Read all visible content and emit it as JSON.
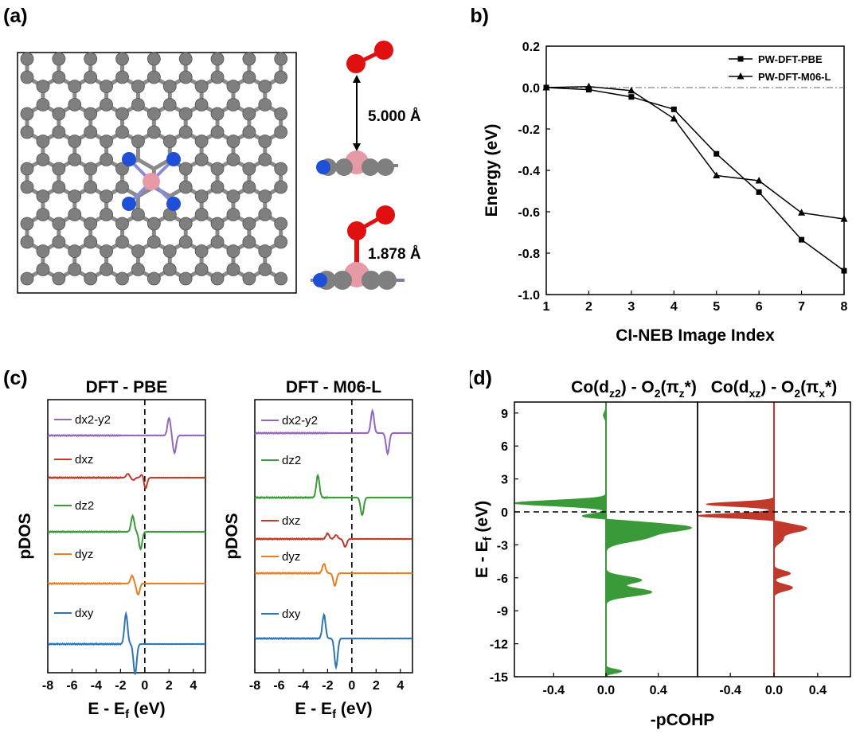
{
  "panels": {
    "a": "(a)",
    "b": "(b)",
    "c": "(c)",
    "d": "(d)"
  },
  "panel_a": {
    "distance_far": "5.000 Å",
    "distance_near": "1.878 Å"
  },
  "colors": {
    "carbon": "#7f7f7f",
    "nitrogen": "#1f4fd8",
    "cobalt": "#e69aa6",
    "oxygen": "#e01010",
    "pbe": "#000000",
    "m06l": "#000000",
    "dx2y2": "#9467bd",
    "dxz": "#c0392b",
    "dz2": "#3a9a3a",
    "dyz": "#e67e22",
    "dxy": "#2e75b6",
    "cohp1": "#3a9a3a",
    "cohp2": "#c0392b"
  },
  "chart_data": [
    {
      "panel": "b",
      "type": "line",
      "xlabel": "CI-NEB Image Index",
      "ylabel": "Energy (eV)",
      "xlim": [
        1,
        8
      ],
      "ylim": [
        -1.0,
        0.2
      ],
      "xticks": [
        "1",
        "2",
        "3",
        "4",
        "5",
        "6",
        "7",
        "8"
      ],
      "yticks": [
        "0.2",
        "0.0",
        "-0.2",
        "-0.4",
        "-0.6",
        "-0.8",
        "-1.0"
      ],
      "legend_position": "top-right",
      "reference_line": 0.0,
      "series": [
        {
          "name": "PW-DFT-PBE",
          "marker": "square",
          "x": [
            1,
            2,
            3,
            4,
            5,
            6,
            7,
            8
          ],
          "values": [
            0.0,
            -0.01,
            -0.045,
            -0.105,
            -0.32,
            -0.505,
            -0.735,
            -0.885
          ]
        },
        {
          "name": "PW-DFT-M06-L",
          "marker": "triangle",
          "x": [
            1,
            2,
            3,
            4,
            5,
            6,
            7,
            8
          ],
          "values": [
            0.0,
            0.005,
            -0.015,
            -0.15,
            -0.425,
            -0.45,
            -0.605,
            -0.635
          ]
        }
      ]
    },
    {
      "panel": "c-left",
      "type": "line",
      "title": "DFT - PBE",
      "xlabel": "E - E",
      "xlabel_sub": "f",
      "xlabel_unit": " (eV)",
      "ylabel": "pDOS",
      "xlim": [
        -8,
        5
      ],
      "xticks": [
        "-8",
        "-6",
        "-4",
        "-2",
        "0",
        "2",
        "4"
      ],
      "fermi_level": 0,
      "series": [
        {
          "name": "dx2-y2",
          "color": "dx2y2",
          "peaks": [
            {
              "e": 2.0,
              "amp": 22
            },
            {
              "e": 2.45,
              "amp": -22
            }
          ]
        },
        {
          "name": "dxz",
          "color": "dxz",
          "peaks": [
            {
              "e": -1.4,
              "amp": 5
            },
            {
              "e": -0.95,
              "amp": -3
            },
            {
              "e": -0.2,
              "amp": 5
            },
            {
              "e": 0.05,
              "amp": -14
            }
          ]
        },
        {
          "name": "dz2",
          "color": "dz2",
          "peaks": [
            {
              "e": -1.0,
              "amp": 20
            },
            {
              "e": -0.35,
              "amp": -22
            }
          ]
        },
        {
          "name": "dyz",
          "color": "dyz",
          "peaks": [
            {
              "e": -1.05,
              "amp": 10
            },
            {
              "e": -0.55,
              "amp": -14
            }
          ]
        },
        {
          "name": "dxy",
          "color": "dxy",
          "peaks": [
            {
              "e": -1.55,
              "amp": 38
            },
            {
              "e": -0.8,
              "amp": -38
            }
          ]
        }
      ]
    },
    {
      "panel": "c-right",
      "type": "line",
      "title": "DFT - M06-L",
      "xlabel": "E - E",
      "xlabel_sub": "f",
      "xlabel_unit": " (eV)",
      "ylabel": "pDOS",
      "xlim": [
        -8,
        5
      ],
      "xticks": [
        "-8",
        "-6",
        "-4",
        "-2",
        "0",
        "2",
        "4"
      ],
      "fermi_level": 0,
      "series": [
        {
          "name": "dx2-y2",
          "color": "dx2y2",
          "peaks": [
            {
              "e": 1.7,
              "amp": 28
            },
            {
              "e": 2.95,
              "amp": -26
            }
          ]
        },
        {
          "name": "dz2",
          "color": "dz2",
          "peaks": [
            {
              "e": -2.8,
              "amp": 28
            },
            {
              "e": 0.85,
              "amp": -22
            }
          ]
        },
        {
          "name": "dxz",
          "color": "dxz",
          "peaks": [
            {
              "e": -2.0,
              "amp": 7
            },
            {
              "e": -1.3,
              "amp": 5
            },
            {
              "e": -0.55,
              "amp": -10
            }
          ]
        },
        {
          "name": "dyz",
          "color": "dyz",
          "peaks": [
            {
              "e": -2.3,
              "amp": 12
            },
            {
              "e": -1.4,
              "amp": -16
            }
          ]
        },
        {
          "name": "dxy",
          "color": "dxy",
          "peaks": [
            {
              "e": -2.3,
              "amp": 30
            },
            {
              "e": -1.3,
              "amp": -36
            }
          ]
        }
      ]
    },
    {
      "panel": "d",
      "type": "area",
      "ylabel": "E - E",
      "ylabel_sub": "f",
      "ylabel_unit": " (eV)",
      "xlabel": "-pCOHP",
      "ylim": [
        -15,
        10
      ],
      "yticks": [
        "9",
        "6",
        "3",
        "0",
        "-3",
        "-6",
        "-9",
        "-12",
        "-15"
      ],
      "fermi_level": 0,
      "subplots": [
        {
          "title_parts": [
            "Co(d",
            "z2",
            ") - O",
            "2",
            "(π",
            "z",
            "*)"
          ],
          "xlim": [
            -0.7,
            0.7
          ],
          "xticks": [
            "-0.4",
            "0.0",
            "0.4"
          ],
          "color": "cohp1",
          "peaks": [
            {
              "e": 0.8,
              "amp": -0.7,
              "w": 0.35
            },
            {
              "e": -0.4,
              "amp": -0.2,
              "w": 0.3
            },
            {
              "e": -1.4,
              "amp": 0.62,
              "w": 0.55
            },
            {
              "e": -2.3,
              "amp": 0.3,
              "w": 0.6
            },
            {
              "e": -6.2,
              "amp": 0.27,
              "w": 0.45
            },
            {
              "e": -7.3,
              "amp": 0.35,
              "w": 0.5
            },
            {
              "e": -14.5,
              "amp": 0.12,
              "w": 0.25
            },
            {
              "e": 8.8,
              "amp": -0.02,
              "w": 0.4
            }
          ]
        },
        {
          "title_parts": [
            "Co(d",
            "xz",
            ") - O",
            "2",
            "(π",
            "x",
            "*)"
          ],
          "xlim": [
            -0.7,
            0.7
          ],
          "xticks": [
            "-0.4",
            "0.0",
            "0.4"
          ],
          "color": "cohp2",
          "peaks": [
            {
              "e": 0.7,
              "amp": -0.62,
              "w": 0.28
            },
            {
              "e": -0.35,
              "amp": -0.7,
              "w": 0.28
            },
            {
              "e": -1.5,
              "amp": 0.3,
              "w": 0.5
            },
            {
              "e": -2.5,
              "amp": 0.08,
              "w": 0.5
            },
            {
              "e": -5.6,
              "amp": 0.15,
              "w": 0.35
            },
            {
              "e": -6.9,
              "amp": 0.17,
              "w": 0.4
            }
          ]
        }
      ]
    }
  ]
}
